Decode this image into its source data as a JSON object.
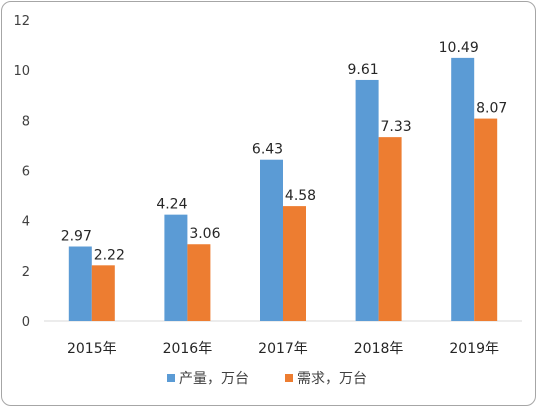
{
  "chart_data": {
    "type": "bar",
    "categories": [
      "2015年",
      "2016年",
      "2017年",
      "2018年",
      "2019年"
    ],
    "series": [
      {
        "name": "产量，万台",
        "values": [
          2.97,
          4.24,
          6.43,
          9.61,
          10.49
        ],
        "color": "#5b9bd5"
      },
      {
        "name": "需求，万台",
        "values": [
          2.22,
          3.06,
          4.58,
          7.33,
          8.07
        ],
        "color": "#ed7d31"
      }
    ],
    "ylim": [
      0,
      12
    ],
    "yticks": [
      0,
      2,
      4,
      6,
      8,
      10,
      12
    ],
    "grid": false,
    "legend": "bottom",
    "data_labels": true,
    "axis_color": "#d9d9d9"
  }
}
